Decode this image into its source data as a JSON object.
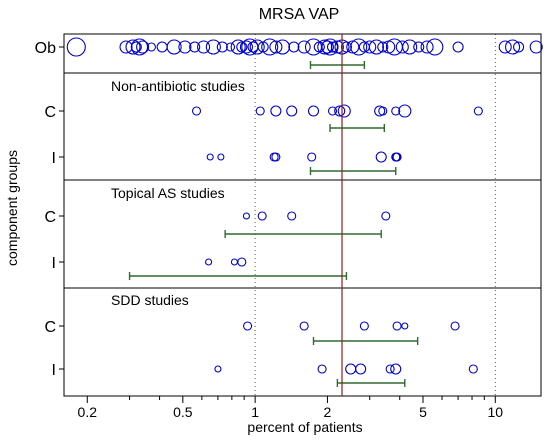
{
  "chart_data": {
    "type": "scatter",
    "title": "MRSA VAP",
    "xlabel": "percent of patients",
    "ylabel": "component groups",
    "x_scale": "log",
    "xlim": [
      0.16,
      15.5
    ],
    "x_ticks": [
      {
        "value": 0.2,
        "label": "0.2"
      },
      {
        "value": 0.5,
        "label": "0.5"
      },
      {
        "value": 1,
        "label": "1"
      },
      {
        "value": 2,
        "label": "2"
      },
      {
        "value": 5,
        "label": "5"
      },
      {
        "value": 10,
        "label": "10"
      }
    ],
    "minor_ticks": [
      0.3,
      0.4,
      0.6,
      0.7,
      0.8,
      0.9,
      3,
      4,
      6,
      7,
      8,
      9
    ],
    "reference_line": 2.3,
    "vertical_dotted_lines": [
      1,
      10
    ],
    "colors": {
      "points": "#0000cc",
      "ci": "#2e6b2e",
      "reference": "#8b2020",
      "frame": "#000000",
      "grid": "#555555"
    },
    "panels": [
      {
        "label": "",
        "groups": [
          {
            "name": "Ob",
            "points": [
              {
                "x": 0.18,
                "s": 9
              },
              {
                "x": 0.29,
                "s": 6
              },
              {
                "x": 0.31,
                "s": 7
              },
              {
                "x": 0.32,
                "s": 5
              },
              {
                "x": 0.33,
                "s": 8
              },
              {
                "x": 0.34,
                "s": 6
              },
              {
                "x": 0.37,
                "s": 4
              },
              {
                "x": 0.41,
                "s": 5
              },
              {
                "x": 0.46,
                "s": 7
              },
              {
                "x": 0.51,
                "s": 6
              },
              {
                "x": 0.56,
                "s": 5
              },
              {
                "x": 0.61,
                "s": 6
              },
              {
                "x": 0.67,
                "s": 7
              },
              {
                "x": 0.73,
                "s": 5
              },
              {
                "x": 0.79,
                "s": 4
              },
              {
                "x": 0.85,
                "s": 7
              },
              {
                "x": 0.88,
                "s": 5
              },
              {
                "x": 0.92,
                "s": 6
              },
              {
                "x": 0.95,
                "s": 8
              },
              {
                "x": 0.98,
                "s": 5
              },
              {
                "x": 1.02,
                "s": 7
              },
              {
                "x": 1.08,
                "s": 5
              },
              {
                "x": 1.15,
                "s": 8
              },
              {
                "x": 1.22,
                "s": 6
              },
              {
                "x": 1.3,
                "s": 7
              },
              {
                "x": 1.45,
                "s": 5
              },
              {
                "x": 1.6,
                "s": 6
              },
              {
                "x": 1.75,
                "s": 8
              },
              {
                "x": 1.85,
                "s": 5
              },
              {
                "x": 1.95,
                "s": 7
              },
              {
                "x": 2.0,
                "s": 6
              },
              {
                "x": 2.05,
                "s": 8
              },
              {
                "x": 2.1,
                "s": 5
              },
              {
                "x": 2.2,
                "s": 6
              },
              {
                "x": 2.3,
                "s": 7
              },
              {
                "x": 2.4,
                "s": 5
              },
              {
                "x": 2.55,
                "s": 6
              },
              {
                "x": 2.7,
                "s": 8
              },
              {
                "x": 2.85,
                "s": 5
              },
              {
                "x": 3.0,
                "s": 6
              },
              {
                "x": 3.2,
                "s": 7
              },
              {
                "x": 3.4,
                "s": 5
              },
              {
                "x": 3.6,
                "s": 6
              },
              {
                "x": 3.8,
                "s": 8
              },
              {
                "x": 4.1,
                "s": 6
              },
              {
                "x": 4.4,
                "s": 7
              },
              {
                "x": 4.8,
                "s": 5
              },
              {
                "x": 5.2,
                "s": 6
              },
              {
                "x": 5.6,
                "s": 8
              },
              {
                "x": 7.0,
                "s": 5
              },
              {
                "x": 11.0,
                "s": 6
              },
              {
                "x": 11.8,
                "s": 7
              },
              {
                "x": 12.5,
                "s": 5
              },
              {
                "x": 14.8,
                "s": 6
              }
            ],
            "ci": [
              1.7,
              2.85
            ]
          }
        ]
      },
      {
        "label": "Non-antibiotic studies",
        "groups": [
          {
            "name": "C",
            "points": [
              {
                "x": 0.57,
                "s": 4
              },
              {
                "x": 1.05,
                "s": 4
              },
              {
                "x": 1.22,
                "s": 5
              },
              {
                "x": 1.42,
                "s": 5
              },
              {
                "x": 1.75,
                "s": 5
              },
              {
                "x": 2.1,
                "s": 4
              },
              {
                "x": 2.25,
                "s": 5
              },
              {
                "x": 2.35,
                "s": 6
              },
              {
                "x": 3.3,
                "s": 5
              },
              {
                "x": 3.4,
                "s": 4
              },
              {
                "x": 3.85,
                "s": 4
              },
              {
                "x": 4.2,
                "s": 6
              },
              {
                "x": 8.5,
                "s": 4
              }
            ],
            "ci": [
              2.05,
              3.45
            ]
          },
          {
            "name": "I",
            "points": [
              {
                "x": 0.65,
                "s": 3
              },
              {
                "x": 0.72,
                "s": 3
              },
              {
                "x": 1.2,
                "s": 4
              },
              {
                "x": 1.22,
                "s": 4
              },
              {
                "x": 1.72,
                "s": 4
              },
              {
                "x": 3.35,
                "s": 5
              },
              {
                "x": 3.85,
                "s": 4
              },
              {
                "x": 3.88,
                "s": 4
              },
              {
                "x": 3.9,
                "s": 4
              }
            ],
            "ci": [
              1.7,
              3.85
            ]
          }
        ]
      },
      {
        "label": "Topical AS studies",
        "groups": [
          {
            "name": "C",
            "points": [
              {
                "x": 0.92,
                "s": 3
              },
              {
                "x": 1.07,
                "s": 4
              },
              {
                "x": 1.42,
                "s": 4
              },
              {
                "x": 3.5,
                "s": 4
              }
            ],
            "ci": [
              0.75,
              3.35
            ]
          },
          {
            "name": "I",
            "points": [
              {
                "x": 0.64,
                "s": 3
              },
              {
                "x": 0.82,
                "s": 3
              },
              {
                "x": 0.88,
                "s": 4
              }
            ],
            "ci": [
              0.3,
              2.4
            ]
          }
        ]
      },
      {
        "label": "SDD studies",
        "groups": [
          {
            "name": "C",
            "points": [
              {
                "x": 0.93,
                "s": 4
              },
              {
                "x": 1.6,
                "s": 4
              },
              {
                "x": 2.85,
                "s": 4
              },
              {
                "x": 3.9,
                "s": 4
              },
              {
                "x": 4.2,
                "s": 3
              },
              {
                "x": 6.8,
                "s": 4
              }
            ],
            "ci": [
              1.75,
              4.75
            ]
          },
          {
            "name": "I",
            "points": [
              {
                "x": 0.7,
                "s": 3
              },
              {
                "x": 1.9,
                "s": 4
              },
              {
                "x": 2.5,
                "s": 5
              },
              {
                "x": 2.75,
                "s": 5
              },
              {
                "x": 3.65,
                "s": 4
              },
              {
                "x": 3.85,
                "s": 5
              },
              {
                "x": 8.1,
                "s": 4
              }
            ],
            "ci": [
              2.2,
              4.2
            ]
          }
        ]
      }
    ]
  }
}
